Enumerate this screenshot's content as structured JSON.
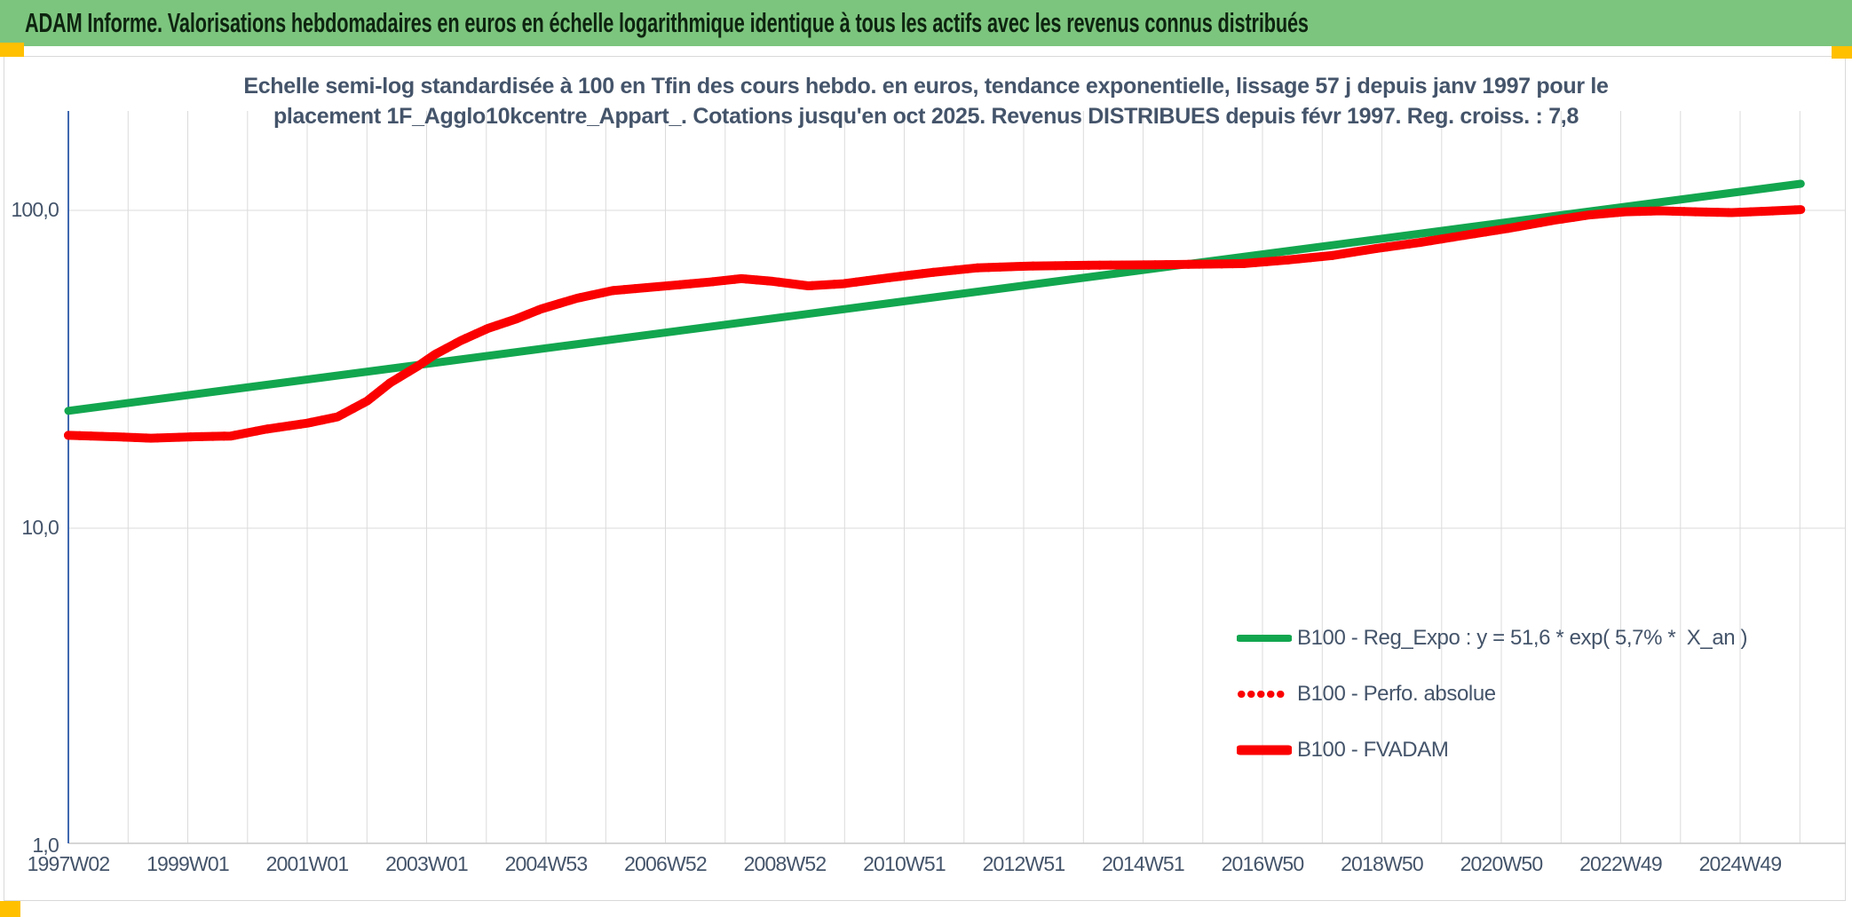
{
  "header": {
    "title": "ADAM Informe. Valorisations hebdomadaires en euros en échelle logarithmique identique à tous les actifs avec les revenus connus distribués"
  },
  "chart": {
    "subtitle_line1": "Echelle semi-log standardisée à 100 en Tfin des cours hebdo. en euros, tendance exponentielle, lissage 57 j depuis janv 1997 pour le",
    "subtitle_line2": "placement 1F_Agglo10kcentre_Appart_.  Cotations jusqu'en oct 2025. Revenus DISTRIBUES depuis févr 1997. Reg. croiss. : 7,8",
    "legend": [
      {
        "label": "B100 - Reg_Expo : y = 51,6 * exp( 5,7% *  X_an )",
        "swatch": "green-solid-line"
      },
      {
        "label": "B100 - Perfo. absolue",
        "swatch": "red-dotted-line"
      },
      {
        "label": "B100 - FVADAM",
        "swatch": "red-solid-line"
      }
    ],
    "colors": {
      "title_bar_green": "#7CC57E",
      "title_text": "#0E2410",
      "gold_marker": "#FFC000",
      "regression_green": "#12A64F",
      "series_red": "#FB0000",
      "gridline_gray": "#DBDBDB",
      "y_axis_blue": "#4068B0",
      "label_slate": "#44546A"
    }
  },
  "chart_data": {
    "type": "line",
    "title": "Echelle semi-log standardisée à 100 en Tfin des cours hebdo. en euros, tendance exponentielle, lissage 57 j depuis janv 1997 pour le placement 1F_Agglo10kcentre_Appart_. Cotations jusqu'en oct 2025. Revenus DISTRIBUES depuis févr 1997. Reg. croiss. : 7,8",
    "x_axis": {
      "type": "time-weekly",
      "tick_labels": [
        "1997W02",
        "1999W01",
        "2001W01",
        "2003W01",
        "2004W53",
        "2006W52",
        "2008W52",
        "2010W51",
        "2012W51",
        "2014W51",
        "2016W50",
        "2018W50",
        "2020W50",
        "2022W49",
        "2024W49"
      ],
      "range_years": [
        1997.0,
        2026.6
      ]
    },
    "y_axis": {
      "scale": "log10",
      "ticks": [
        {
          "label": "100,0",
          "value": 100.0
        },
        {
          "label": "10,0",
          "value": 10.0
        },
        {
          "label": "1,0",
          "value": 1.0
        }
      ],
      "range": [
        1.0,
        205.0
      ]
    },
    "grid": {
      "vertical": "yearly",
      "horizontal": "decades"
    },
    "legend_position": "inside-lower-right",
    "series": [
      {
        "name": "B100 - Reg_Expo : y = 51,6 * exp( 5,7% *  X_an )",
        "color": "#12A64F",
        "style": "solid",
        "points": [
          [
            1997.0,
            23.4
          ],
          [
            2025.78,
            121.3
          ]
        ]
      },
      {
        "name": "B100 - Perfo. absolue",
        "color": "#FB0000",
        "style": "dotted",
        "points_same_as_series": "B100 - FVADAM"
      },
      {
        "name": "B100 - FVADAM",
        "color": "#FB0000",
        "style": "solid",
        "points": [
          [
            1997.0,
            19.6
          ],
          [
            1997.78,
            19.4
          ],
          [
            1998.37,
            19.2
          ],
          [
            1999.11,
            19.4
          ],
          [
            1999.7,
            19.5
          ],
          [
            2000.29,
            20.5
          ],
          [
            2000.97,
            21.4
          ],
          [
            2001.47,
            22.4
          ],
          [
            2001.96,
            25.1
          ],
          [
            2002.35,
            28.7
          ],
          [
            2002.8,
            32.3
          ],
          [
            2003.09,
            35.2
          ],
          [
            2003.53,
            39.0
          ],
          [
            2003.98,
            42.6
          ],
          [
            2004.42,
            45.4
          ],
          [
            2004.86,
            49.0
          ],
          [
            2005.45,
            52.9
          ],
          [
            2006.04,
            55.9
          ],
          [
            2006.63,
            57.2
          ],
          [
            2007.22,
            58.5
          ],
          [
            2007.66,
            59.5
          ],
          [
            2008.18,
            61.0
          ],
          [
            2008.7,
            59.8
          ],
          [
            2009.29,
            57.9
          ],
          [
            2009.88,
            58.8
          ],
          [
            2010.61,
            61.3
          ],
          [
            2011.35,
            63.8
          ],
          [
            2012.09,
            65.9
          ],
          [
            2012.97,
            66.8
          ],
          [
            2014.01,
            67.2
          ],
          [
            2015.04,
            67.4
          ],
          [
            2016.07,
            67.8
          ],
          [
            2016.51,
            68.0
          ],
          [
            2017.25,
            69.8
          ],
          [
            2017.99,
            72.1
          ],
          [
            2018.73,
            75.9
          ],
          [
            2019.46,
            79.3
          ],
          [
            2020.2,
            83.5
          ],
          [
            2020.94,
            87.9
          ],
          [
            2021.68,
            93.1
          ],
          [
            2022.27,
            96.8
          ],
          [
            2022.86,
            99.0
          ],
          [
            2023.45,
            99.7
          ],
          [
            2024.04,
            99.0
          ],
          [
            2024.63,
            98.4
          ],
          [
            2025.22,
            99.4
          ],
          [
            2025.78,
            100.6
          ]
        ]
      }
    ]
  }
}
